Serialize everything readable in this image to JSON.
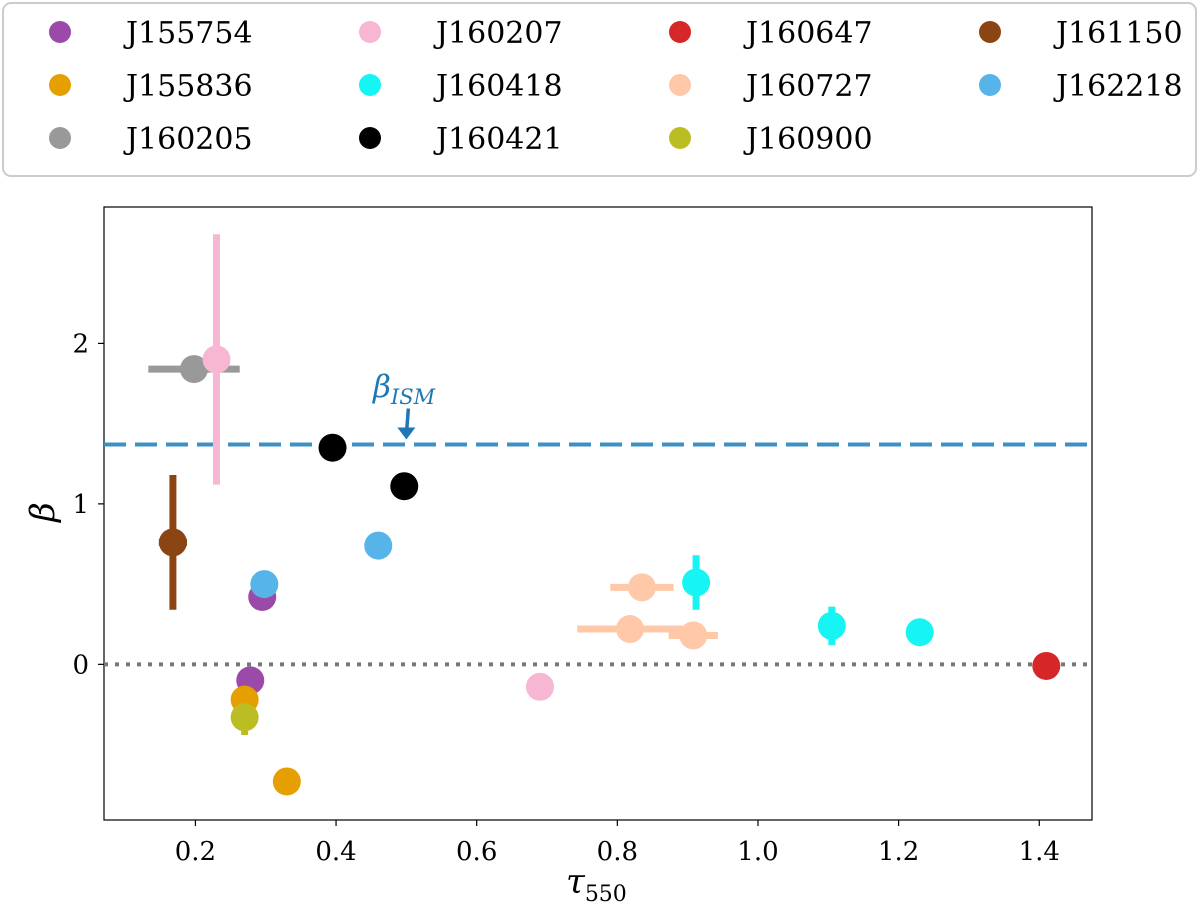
{
  "chart_data": {
    "type": "scatter",
    "title": "",
    "xlabel": "τ",
    "xlabel_sub": "550",
    "ylabel": "β",
    "xlim": [
      0.07,
      1.475
    ],
    "ylim": [
      -0.97,
      2.85
    ],
    "xticks": [
      0.2,
      0.4,
      0.6,
      0.8,
      1.0,
      1.2,
      1.4
    ],
    "xtick_labels": [
      "0.2",
      "0.4",
      "0.6",
      "0.8",
      "1.0",
      "1.2",
      "1.4"
    ],
    "yticks": [
      0,
      1,
      2
    ],
    "ytick_labels": [
      "0",
      "1",
      "2"
    ],
    "grid": false,
    "legend_position": "top",
    "reference_lines": [
      {
        "name": "beta-ism-line",
        "y": 1.37,
        "style": "dashed",
        "color": "#3d8fc4"
      },
      {
        "name": "zero-line",
        "y": 0,
        "style": "dotted",
        "color": "#777777"
      }
    ],
    "annotation": {
      "text": "β",
      "sub": "ISM",
      "x": 0.5,
      "y": 1.37,
      "color": "#1f77b4",
      "arrow": true
    },
    "series": [
      {
        "name": "J155754",
        "color": "#9b4aaa",
        "points": [
          {
            "x": 0.295,
            "y": 0.42,
            "xerr": 0,
            "yerr": 0
          },
          {
            "x": 0.278,
            "y": -0.1,
            "xerr": 0,
            "yerr": 0
          }
        ]
      },
      {
        "name": "J155836",
        "color": "#e69f00",
        "points": [
          {
            "x": 0.27,
            "y": -0.22,
            "xerr": 0,
            "yerr": 0
          },
          {
            "x": 0.33,
            "y": -0.73,
            "xerr": 0,
            "yerr": 0
          }
        ]
      },
      {
        "name": "J160205",
        "color": "#999999",
        "points": [
          {
            "x": 0.198,
            "y": 1.84,
            "xerr": 0.065,
            "yerr": 0
          }
        ]
      },
      {
        "name": "J160207",
        "color": "#f7b6d2",
        "points": [
          {
            "x": 0.23,
            "y": 1.9,
            "xerr": 0.015,
            "yerr": 0.78
          },
          {
            "x": 0.69,
            "y": -0.14,
            "xerr": 0.015,
            "yerr": 0
          }
        ]
      },
      {
        "name": "J160418",
        "color": "#17f4f4",
        "points": [
          {
            "x": 0.912,
            "y": 0.51,
            "xerr": 0,
            "yerr": 0.17
          },
          {
            "x": 1.105,
            "y": 0.24,
            "xerr": 0,
            "yerr": 0.12
          },
          {
            "x": 1.23,
            "y": 0.2,
            "xerr": 0,
            "yerr": 0
          }
        ]
      },
      {
        "name": "J160421",
        "color": "#000000",
        "points": [
          {
            "x": 0.395,
            "y": 1.35,
            "xerr": 0,
            "yerr": 0
          },
          {
            "x": 0.497,
            "y": 1.11,
            "xerr": 0,
            "yerr": 0
          }
        ]
      },
      {
        "name": "J160647",
        "color": "#d62728",
        "points": [
          {
            "x": 1.41,
            "y": -0.01,
            "xerr": 0,
            "yerr": 0
          }
        ]
      },
      {
        "name": "J160727",
        "color": "#ffc8a8",
        "points": [
          {
            "x": 0.835,
            "y": 0.48,
            "xerr": 0.045,
            "yerr": 0
          },
          {
            "x": 0.818,
            "y": 0.22,
            "xerr": 0.075,
            "yerr": 0
          },
          {
            "x": 0.908,
            "y": 0.18,
            "xerr": 0.035,
            "yerr": 0
          }
        ]
      },
      {
        "name": "J160900",
        "color": "#bcbd22",
        "points": [
          {
            "x": 0.27,
            "y": -0.33,
            "xerr": 0,
            "yerr": 0.11
          }
        ]
      },
      {
        "name": "J161150",
        "color": "#8b4513",
        "points": [
          {
            "x": 0.168,
            "y": 0.76,
            "xerr": 0.02,
            "yerr": 0.42
          }
        ]
      },
      {
        "name": "J162218",
        "color": "#56b4e9",
        "points": [
          {
            "x": 0.298,
            "y": 0.5,
            "xerr": 0,
            "yerr": 0
          },
          {
            "x": 0.46,
            "y": 0.74,
            "xerr": 0,
            "yerr": 0
          }
        ]
      }
    ]
  }
}
